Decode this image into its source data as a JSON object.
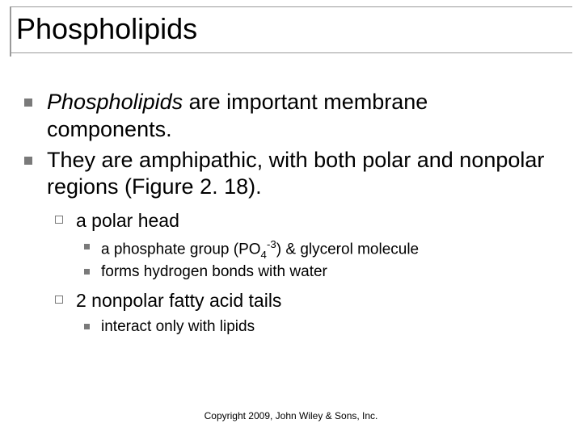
{
  "slide": {
    "title": "Phospholipids",
    "bullets": [
      {
        "prefix_italic": "Phospholipids",
        "rest": " are important membrane components."
      },
      {
        "text": "They are amphipathic, with both polar and nonpolar regions (Figure 2. 18)."
      }
    ],
    "sub1": [
      {
        "label": "a polar head",
        "items": [
          {
            "pre": "a phosphate group (PO",
            "sub": "4",
            "sup": "-3",
            "post": ") & glycerol molecule"
          },
          {
            "text": "forms hydrogen bonds with water"
          }
        ]
      },
      {
        "label": "2 nonpolar fatty acid tails",
        "items": [
          {
            "text": "interact only with lipids"
          }
        ]
      }
    ],
    "footer": "Copyright 2009, John Wiley & Sons, Inc."
  },
  "style": {
    "background_color": "#ffffff",
    "title_fontsize": 36,
    "l1_fontsize": 27,
    "l2_fontsize": 23,
    "l3_fontsize": 19,
    "bullet_color": "#7a7a7a",
    "rule_color": "#9a9a9a",
    "text_color": "#000000",
    "footer_fontsize": 12
  }
}
